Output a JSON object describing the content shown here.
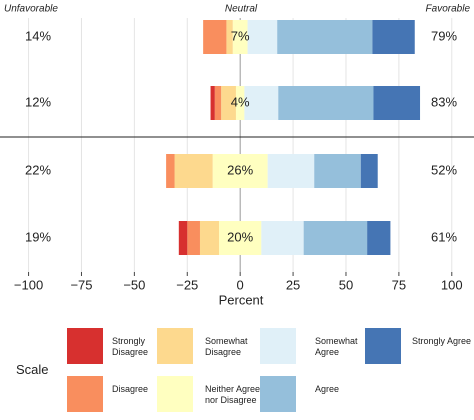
{
  "chart_data": {
    "type": "diverging_stacked_bar",
    "xlabel": "Percent",
    "unfavorable_label": "Unfavorable",
    "neutral_label": "Neutral",
    "favorable_label": "Favorable",
    "legend_title": "Scale",
    "xlim": [
      -113.5,
      110.5
    ],
    "xticks": [
      {
        "value": -100,
        "label": "−100"
      },
      {
        "value": -75,
        "label": "−75"
      },
      {
        "value": -50,
        "label": "−50"
      },
      {
        "value": -25,
        "label": "−25"
      },
      0,
      25,
      50,
      75,
      100
    ],
    "grid": true,
    "series": [
      {
        "name": "Strongly Disagree",
        "color": "#d7302f",
        "side": "left",
        "values": [
          0,
          2,
          0,
          4
        ]
      },
      {
        "name": "Disagree",
        "color": "#f98e5e",
        "side": "left",
        "values": [
          11,
          3,
          4,
          6
        ]
      },
      {
        "name": "Somewhat Disagree",
        "color": "#fdd98e",
        "side": "left",
        "values": [
          3,
          7,
          18,
          9
        ]
      },
      {
        "name": "Neither Agree nor Disagree",
        "color": "#ffffc0",
        "side": "center",
        "values": [
          7,
          4,
          26,
          20
        ],
        "value_labels": [
          "7%",
          "4%",
          "26%",
          "20%"
        ]
      },
      {
        "name": "Somewhat Agree",
        "color": "#e0f0f8",
        "side": "right",
        "values": [
          14,
          16,
          22,
          20
        ]
      },
      {
        "name": "Agree",
        "color": "#95bfdb",
        "side": "right",
        "values": [
          45,
          45,
          22,
          30
        ]
      },
      {
        "name": "Strongly Agree",
        "color": "#4575b4",
        "side": "right",
        "values": [
          20,
          22,
          8,
          11
        ]
      }
    ],
    "unfavorable": {
      "values": [
        14,
        12,
        22,
        19
      ],
      "value_labels": [
        "14%",
        "12%",
        "22%",
        "19%"
      ]
    },
    "favorable": {
      "values": [
        79,
        83,
        52,
        61
      ],
      "value_labels": [
        "79%",
        "83%",
        "52%",
        "61%"
      ]
    }
  }
}
